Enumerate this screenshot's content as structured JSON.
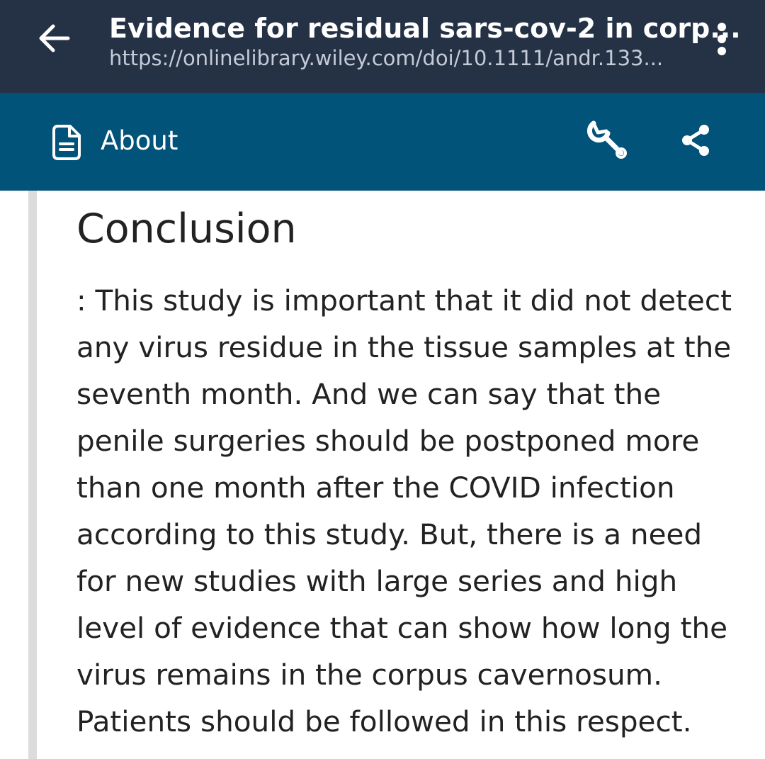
{
  "header": {
    "title": "Evidence for residual sars-cov-2 in corp...",
    "url": "https://onlinelibrary.wiley.com/doi/10.1111/andr.133..."
  },
  "toolbar": {
    "about_label": "About",
    "icons": [
      "back-arrow-icon",
      "more-vert-icon",
      "document-icon",
      "wrench-icon",
      "share-icon"
    ]
  },
  "article": {
    "heading": "Conclusion",
    "paragraph_lines": [
      ": This study is important that it did not detect",
      "any virus residue in the tissue samples at the",
      "seventh month. And we can say that the",
      "penile surgeries should be postponed more",
      "than one month after the COVID infection",
      "according to this study. But, there is a need",
      "for new studies with large series and high",
      "level of evidence that can show how long the",
      "virus remains in the corpus cavernosum.",
      "Patients should be followed in this respect."
    ]
  },
  "colors": {
    "top_bar": "#253246",
    "toolbar": "#02537a",
    "text": "#222222",
    "quote_bar": "#dcdcde"
  }
}
